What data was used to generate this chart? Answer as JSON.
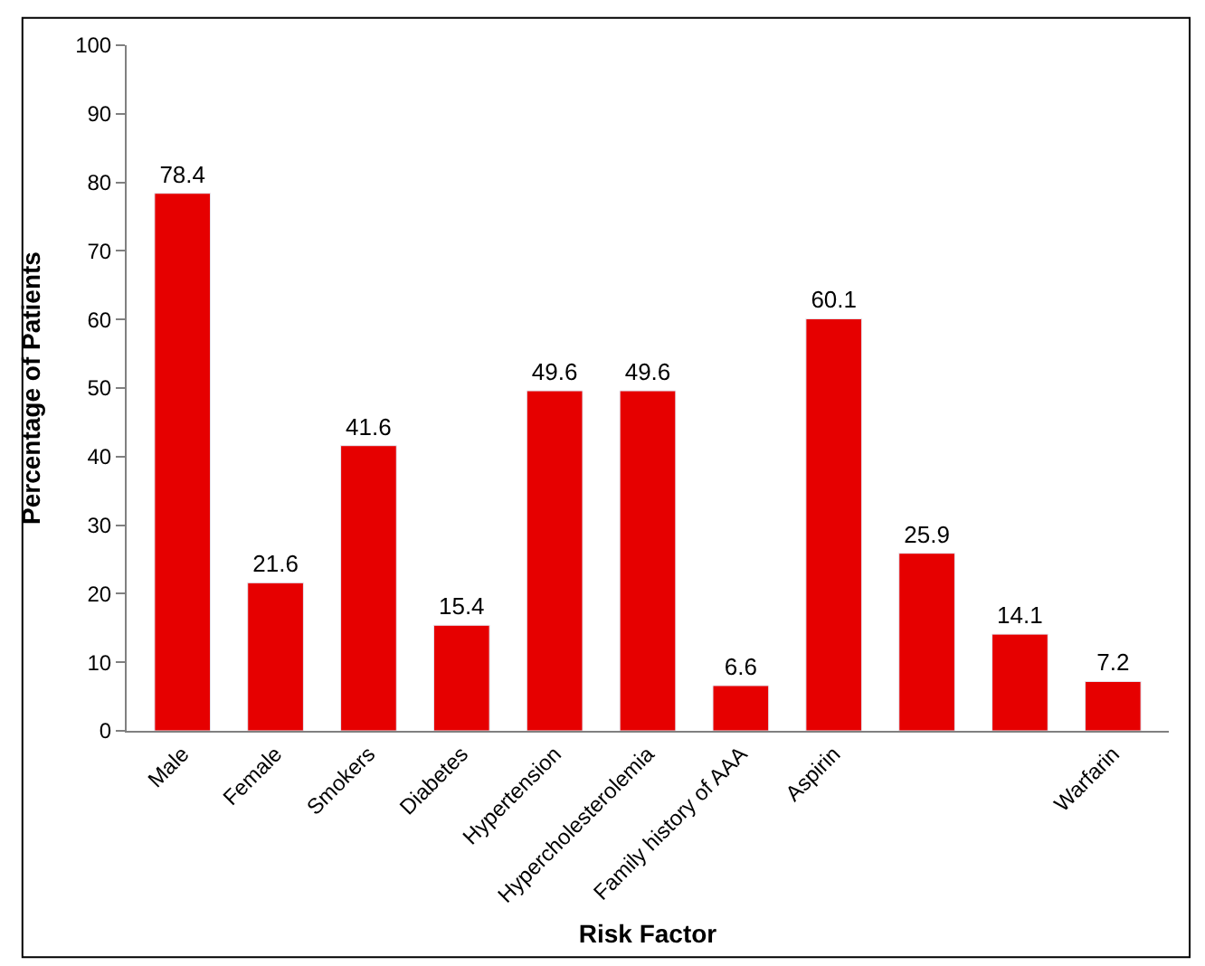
{
  "chart_data": {
    "type": "bar",
    "xlabel": "Risk Factor",
    "ylabel": "Percentage of Patients",
    "categories": [
      "Male",
      "Female",
      "Smokers",
      "Diabetes",
      "Hypertension",
      "Hypercholesterolemia",
      "Family history of AAA",
      "Aspirin",
      null,
      null,
      "Warfarin"
    ],
    "values": [
      78.4,
      21.6,
      41.6,
      15.4,
      49.6,
      49.6,
      6.6,
      60.1,
      25.9,
      14.1,
      7.2
    ],
    "color": "#e60000",
    "ylim": [
      0,
      100
    ],
    "yticks": [
      0,
      10,
      20,
      30,
      40,
      50,
      60,
      70,
      80,
      90,
      100
    ],
    "legend": false,
    "data_labels": true
  }
}
